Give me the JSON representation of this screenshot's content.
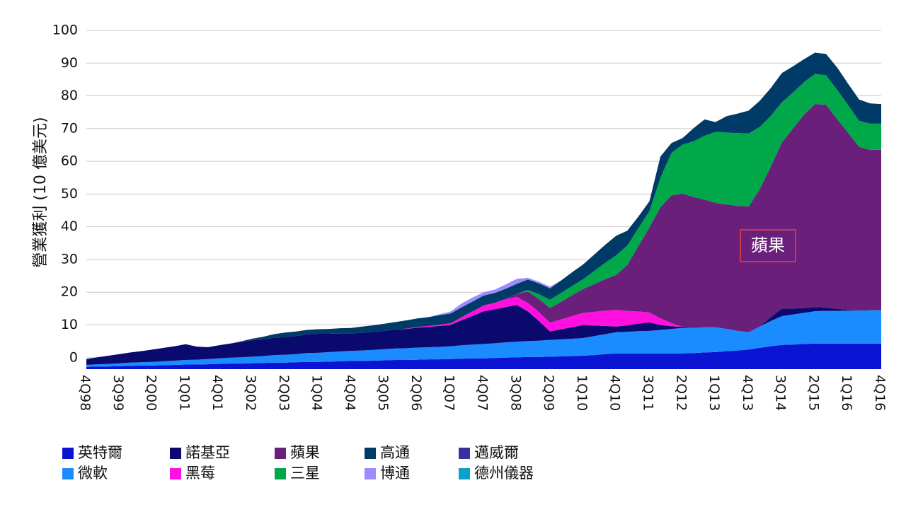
{
  "chart_data": {
    "type": "stacked_area",
    "y_label": "營業獲利 (10 億美元)",
    "annotation": "蘋果",
    "categories": [
      "4Q98",
      null,
      null,
      "3Q99",
      null,
      null,
      "2Q00",
      null,
      null,
      "1Q01",
      null,
      null,
      "4Q01",
      null,
      null,
      "3Q02",
      null,
      null,
      "2Q03",
      null,
      null,
      "1Q04",
      null,
      null,
      "4Q04",
      null,
      null,
      "3Q05",
      null,
      null,
      "2Q06",
      null,
      null,
      "1Q07",
      null,
      null,
      "4Q07",
      null,
      null,
      "3Q08",
      null,
      null,
      "2Q09",
      null,
      null,
      "1Q10",
      null,
      null,
      "4Q10",
      null,
      null,
      "3Q11",
      null,
      null,
      "2Q12",
      null,
      null,
      "1Q13",
      null,
      null,
      "4Q13",
      null,
      null,
      "3Q14",
      null,
      null,
      "2Q15",
      null,
      null,
      "1Q16",
      null,
      null,
      "4Q16"
    ],
    "ylim": [
      -3.5,
      100
    ],
    "yticks": [
      0,
      10,
      20,
      30,
      40,
      50,
      60,
      70,
      80,
      90,
      100
    ],
    "grid": true,
    "series": [
      {
        "name": "英特爾",
        "color": "#0a14d2",
        "values": [
          0.7,
          0.8,
          0.8,
          0.9,
          1.0,
          1.1,
          1.1,
          1.2,
          1.3,
          1.4,
          1.4,
          1.5,
          1.6,
          1.7,
          1.7,
          1.8,
          1.9,
          2.0,
          2.0,
          2.1,
          2.2,
          2.2,
          2.3,
          2.4,
          2.5,
          2.5,
          2.6,
          2.7,
          2.8,
          2.8,
          2.9,
          3.0,
          3.0,
          3.1,
          3.2,
          3.3,
          3.3,
          3.4,
          3.5,
          3.6,
          3.7,
          3.7,
          3.8,
          3.9,
          4.0,
          4.1,
          4.3,
          4.6,
          4.8,
          4.8,
          4.8,
          4.8,
          4.8,
          4.8,
          4.8,
          4.9,
          5.1,
          5.2,
          5.5,
          5.7,
          6.0,
          6.5,
          7.0,
          7.4,
          7.5,
          7.7,
          7.8,
          7.8,
          7.8,
          7.8,
          7.8,
          7.8,
          7.8
        ]
      },
      {
        "name": "微軟",
        "color": "#1a8cff",
        "values": [
          0.6,
          0.7,
          0.8,
          0.9,
          1.0,
          1.0,
          1.1,
          1.2,
          1.3,
          1.4,
          1.5,
          1.6,
          1.7,
          1.8,
          1.9,
          2.0,
          2.1,
          2.3,
          2.4,
          2.5,
          2.7,
          2.8,
          2.9,
          3.0,
          3.1,
          3.2,
          3.3,
          3.4,
          3.5,
          3.6,
          3.7,
          3.7,
          3.8,
          3.9,
          4.1,
          4.2,
          4.4,
          4.5,
          4.7,
          4.8,
          4.9,
          5.0,
          5.1,
          5.2,
          5.3,
          5.4,
          5.8,
          6.1,
          6.5,
          6.6,
          6.8,
          6.9,
          7.2,
          7.5,
          7.8,
          7.7,
          7.7,
          7.6,
          6.8,
          6.0,
          5.3,
          6.5,
          7.7,
          8.8,
          9.2,
          9.5,
          9.9,
          10.0,
          10.0,
          10.1,
          10.1,
          10.2,
          10.2
        ]
      },
      {
        "name": "諾基亞",
        "color": "#0a0a6e",
        "values": [
          1.8,
          2.1,
          2.5,
          2.8,
          3.1,
          3.4,
          3.8,
          4.1,
          4.4,
          4.8,
          4.0,
          3.6,
          4.0,
          4.3,
          4.7,
          5.0,
          5.1,
          5.3,
          5.4,
          5.5,
          5.7,
          5.8,
          5.6,
          5.5,
          5.3,
          5.4,
          5.5,
          5.6,
          5.8,
          5.9,
          6.1,
          6.2,
          6.4,
          6.5,
          7.7,
          8.8,
          10.0,
          10.4,
          10.8,
          11.2,
          9.0,
          6.0,
          2.6,
          3.1,
          3.5,
          4.0,
          3.2,
          2.5,
          1.7,
          2.0,
          2.3,
          2.6,
          1.5,
          0.8,
          0.3,
          0,
          0,
          0,
          0,
          0,
          0,
          0,
          1.2,
          2.3,
          1.8,
          1.5,
          1.3,
          1.0,
          0.6,
          0.3,
          0,
          0,
          0
        ]
      },
      {
        "name": "黑莓",
        "color": "#ff10e0",
        "values": [
          0,
          0,
          0,
          0,
          0,
          0,
          0,
          0,
          0,
          0,
          0,
          0,
          0,
          0,
          0,
          0,
          0,
          0,
          0,
          0,
          0,
          0,
          0,
          0,
          0,
          0,
          0,
          0,
          0,
          0.1,
          0.2,
          0.3,
          0.4,
          0.5,
          0.9,
          1.4,
          1.8,
          2.0,
          2.3,
          2.5,
          2.6,
          2.7,
          2.7,
          3.0,
          3.4,
          3.7,
          4.2,
          4.7,
          5.1,
          4.4,
          3.7,
          3.0,
          2.0,
          1.0,
          0,
          0,
          0,
          0,
          0,
          0,
          0,
          0,
          0,
          0,
          0,
          0,
          0,
          0,
          0,
          0,
          0,
          0,
          0
        ]
      },
      {
        "name": "蘋果",
        "color": "#6a1f7a",
        "values": [
          0,
          0,
          0,
          0,
          0,
          0,
          0,
          0,
          0,
          0,
          0,
          0,
          0,
          0,
          0,
          0,
          0,
          0,
          0,
          0,
          0,
          0,
          0,
          0,
          0,
          0,
          0,
          0,
          0,
          0,
          0,
          0,
          0,
          0,
          0,
          0,
          0,
          0,
          0.3,
          1.0,
          3.5,
          4,
          4.5,
          5.4,
          6.4,
          7.3,
          8.5,
          9.6,
          10.7,
          14,
          20,
          26,
          34,
          39,
          40.7,
          40,
          39,
          38,
          38,
          38.2,
          38.4,
          42,
          46,
          50.7,
          55,
          59,
          62,
          62,
          58,
          54,
          50,
          49,
          49
        ]
      },
      {
        "name": "三星",
        "color": "#00a84a",
        "values": [
          0,
          0,
          0,
          0,
          0,
          0,
          0,
          0,
          0,
          0,
          0,
          0,
          0,
          0,
          0,
          0,
          0,
          0,
          0,
          0,
          0,
          0,
          0,
          0,
          0,
          0,
          0,
          0,
          0,
          0,
          0,
          0,
          0,
          0,
          0,
          0,
          0,
          0,
          0,
          0,
          0.5,
          1.5,
          2.5,
          2.7,
          2.8,
          3,
          4,
          5,
          6,
          6,
          5.5,
          5,
          9,
          13,
          15,
          17,
          19.5,
          21.7,
          22,
          22.2,
          22.3,
          19,
          15.5,
          12.3,
          11,
          10,
          9.2,
          9,
          9,
          8.5,
          8,
          8,
          8
        ]
      },
      {
        "name": "高通",
        "color": "#003a66",
        "values": [
          0,
          0,
          0,
          0,
          0,
          0,
          0,
          0,
          0,
          0,
          0,
          0,
          0,
          0,
          0.2,
          0.5,
          0.8,
          1.1,
          1.4,
          1.4,
          1.4,
          1.4,
          1.5,
          1.6,
          1.7,
          1.9,
          2.0,
          2.2,
          2.3,
          2.5,
          2.6,
          2.7,
          2.9,
          3.0,
          3,
          3,
          3,
          3,
          3,
          3,
          3.2,
          3.3,
          3.5,
          3.8,
          4.2,
          4.5,
          5,
          5.5,
          6,
          4.5,
          3.5,
          3,
          6.5,
          3,
          2,
          4,
          5,
          3,
          5,
          6,
          7,
          8,
          8.5,
          9,
          8,
          7,
          6.5,
          6.5,
          6.8,
          6.5,
          6.5,
          6.2,
          6
        ]
      },
      {
        "name": "博通",
        "color": "#9b8cff",
        "values": [
          0,
          0,
          0,
          0,
          0,
          0,
          0,
          0,
          0,
          0,
          0,
          0,
          0,
          0,
          0,
          0,
          0,
          0,
          0,
          0,
          0,
          0,
          0,
          0,
          0,
          0,
          0,
          0,
          0,
          0,
          0,
          0,
          0.3,
          0.6,
          1.2,
          1.2,
          1.0,
          1.0,
          1.3,
          1.5,
          0.5,
          0.5,
          0.5,
          0,
          0,
          0,
          0,
          0,
          0,
          0,
          0,
          0,
          0,
          0,
          0,
          0,
          0,
          0,
          0,
          0,
          0,
          0,
          0,
          0,
          0,
          0,
          0,
          0,
          0,
          0,
          0,
          0,
          0
        ]
      },
      {
        "name": "邁威爾",
        "color": "#3a2fa0",
        "values": [
          0,
          0,
          0,
          0,
          0,
          0,
          0,
          0,
          0,
          0,
          0,
          0,
          0,
          0,
          0,
          0,
          0,
          0,
          0,
          0,
          0,
          0,
          0,
          0,
          0,
          0,
          0,
          0,
          0,
          0,
          0,
          0,
          0,
          0,
          0,
          0,
          0,
          0,
          0,
          0,
          0,
          0,
          0,
          0,
          0,
          0,
          0,
          0,
          0,
          0,
          0,
          0,
          0,
          0,
          0,
          0,
          0,
          0,
          0,
          0,
          0,
          0,
          0,
          0,
          0,
          0,
          0,
          0,
          0,
          0,
          0,
          0,
          0
        ]
      },
      {
        "name": "德州儀器",
        "color": "#0aa0c8",
        "values": [
          0,
          0,
          0,
          0,
          0,
          0,
          0,
          0,
          0,
          0,
          0,
          0,
          0,
          0,
          0,
          0,
          0,
          0,
          0,
          0,
          0,
          0,
          0,
          0,
          0,
          0,
          0,
          0,
          0,
          0,
          0,
          0,
          0,
          0,
          0,
          0,
          0,
          0,
          0,
          0,
          0,
          0,
          0,
          0,
          0,
          0,
          0,
          0,
          0,
          0,
          0,
          0,
          0,
          0,
          0,
          0,
          0,
          0,
          0,
          0,
          0,
          0,
          0,
          0,
          0,
          0,
          0,
          0,
          0,
          0,
          0,
          0,
          0
        ]
      }
    ]
  }
}
